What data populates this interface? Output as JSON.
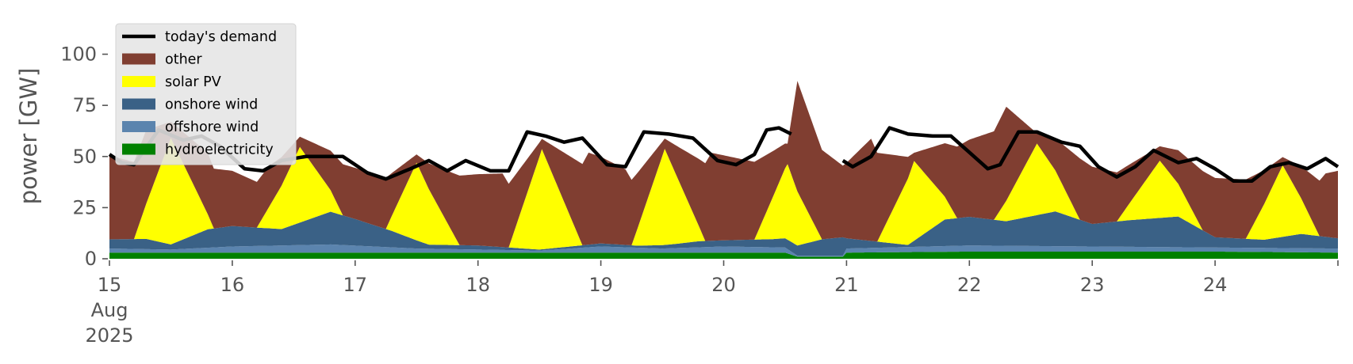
{
  "chart_data": {
    "type": "area",
    "stacked": true,
    "ylabel": "power [GW]",
    "ylim": [
      0,
      118
    ],
    "y_ticks": [
      0,
      25,
      50,
      75,
      100
    ],
    "x_range": [
      15,
      25
    ],
    "x_unit": "day of August 2025",
    "x_ticks": [
      {
        "day": 15,
        "lines": [
          "15",
          "Aug",
          "2025"
        ]
      },
      {
        "day": 16,
        "lines": [
          "16"
        ]
      },
      {
        "day": 17,
        "lines": [
          "17"
        ]
      },
      {
        "day": 18,
        "lines": [
          "18"
        ]
      },
      {
        "day": 19,
        "lines": [
          "19"
        ]
      },
      {
        "day": 20,
        "lines": [
          "20"
        ]
      },
      {
        "day": 21,
        "lines": [
          "21"
        ]
      },
      {
        "day": 22,
        "lines": [
          "22"
        ]
      },
      {
        "day": 23,
        "lines": [
          "23"
        ]
      },
      {
        "day": 24,
        "lines": [
          "24"
        ]
      }
    ],
    "grid": false,
    "legend_position": "top-left",
    "gap_days": [
      20.63,
      20.97
    ],
    "series": [
      {
        "name": "hydroelectricity",
        "color": "#008000",
        "points": [
          [
            15,
            3
          ],
          [
            16,
            3
          ],
          [
            17,
            3
          ],
          [
            18,
            3
          ],
          [
            19,
            3
          ],
          [
            20,
            3
          ],
          [
            20.5,
            3
          ],
          [
            20.6,
            1
          ],
          [
            20.97,
            1
          ],
          [
            21,
            3
          ],
          [
            22,
            3.5
          ],
          [
            23,
            3.5
          ],
          [
            24,
            3.5
          ],
          [
            25,
            3
          ]
        ]
      },
      {
        "name": "offshore wind",
        "color": "#5b84ae",
        "points": [
          [
            15,
            2
          ],
          [
            15.5,
            1.5
          ],
          [
            16,
            3
          ],
          [
            16.8,
            4
          ],
          [
            17.5,
            2
          ],
          [
            18,
            1.5
          ],
          [
            18.5,
            1
          ],
          [
            19,
            3
          ],
          [
            19.5,
            2
          ],
          [
            20,
            3
          ],
          [
            20.5,
            2.5
          ],
          [
            20.6,
            0.5
          ],
          [
            20.97,
            0.5
          ],
          [
            21,
            2
          ],
          [
            22,
            3
          ],
          [
            23,
            2.5
          ],
          [
            24,
            2
          ],
          [
            25,
            2
          ]
        ]
      },
      {
        "name": "onshore wind",
        "color": "#3a6186",
        "points": [
          [
            15,
            4.5
          ],
          [
            15.3,
            5
          ],
          [
            15.5,
            2.5
          ],
          [
            15.8,
            9
          ],
          [
            16,
            10
          ],
          [
            16.4,
            8
          ],
          [
            16.8,
            16
          ],
          [
            17,
            13
          ],
          [
            17.3,
            8
          ],
          [
            17.6,
            2
          ],
          [
            18,
            2
          ],
          [
            18.5,
            0.5
          ],
          [
            19,
            1.5
          ],
          [
            19.3,
            1
          ],
          [
            19.6,
            2
          ],
          [
            19.8,
            3
          ],
          [
            20,
            3
          ],
          [
            20.4,
            4
          ],
          [
            20.6,
            5
          ],
          [
            20.8,
            8
          ],
          [
            20.97,
            9
          ],
          [
            21,
            5
          ],
          [
            21.5,
            1
          ],
          [
            21.8,
            13
          ],
          [
            22,
            14
          ],
          [
            22.3,
            12
          ],
          [
            22.7,
            17
          ],
          [
            23,
            11
          ],
          [
            23.3,
            13
          ],
          [
            23.7,
            15
          ],
          [
            24,
            5
          ],
          [
            24.4,
            4
          ],
          [
            24.7,
            7
          ],
          [
            25,
            5
          ]
        ]
      },
      {
        "name": "solar PV",
        "color": "#ffff00",
        "points": [
          [
            15,
            0
          ],
          [
            15.2,
            0
          ],
          [
            15.5,
            52
          ],
          [
            15.85,
            0
          ],
          [
            16.2,
            0
          ],
          [
            16.55,
            37
          ],
          [
            16.9,
            0
          ],
          [
            17.25,
            0
          ],
          [
            17.5,
            38
          ],
          [
            17.85,
            0
          ],
          [
            18.25,
            0
          ],
          [
            18.52,
            49
          ],
          [
            18.85,
            0
          ],
          [
            19.25,
            0
          ],
          [
            19.52,
            47
          ],
          [
            19.85,
            0
          ],
          [
            20.25,
            0
          ],
          [
            20.52,
            37
          ],
          [
            20.8,
            0
          ],
          [
            21.25,
            0
          ],
          [
            21.55,
            39
          ],
          [
            21.9,
            0
          ],
          [
            22.2,
            0
          ],
          [
            22.55,
            35
          ],
          [
            22.9,
            0
          ],
          [
            23.2,
            0
          ],
          [
            23.55,
            28
          ],
          [
            23.9,
            0
          ],
          [
            24.25,
            0
          ],
          [
            24.55,
            35
          ],
          [
            24.85,
            0
          ],
          [
            25,
            0
          ]
        ]
      },
      {
        "name": "other",
        "color": "#803e31",
        "points": [
          [
            15,
            41
          ],
          [
            15.3,
            36
          ],
          [
            15.5,
            8
          ],
          [
            15.8,
            30
          ],
          [
            16,
            27
          ],
          [
            16.3,
            20
          ],
          [
            16.55,
            5
          ],
          [
            16.9,
            25
          ],
          [
            17.25,
            25
          ],
          [
            17.5,
            4
          ],
          [
            17.85,
            34
          ],
          [
            18.2,
            36
          ],
          [
            18.52,
            5
          ],
          [
            18.9,
            45
          ],
          [
            19.2,
            37
          ],
          [
            19.52,
            5
          ],
          [
            19.9,
            43
          ],
          [
            20.25,
            38
          ],
          [
            20.52,
            10
          ],
          [
            20.6,
            54
          ],
          [
            20.97,
            35
          ],
          [
            21.2,
            50
          ],
          [
            21.55,
            4
          ],
          [
            21.9,
            35
          ],
          [
            22.3,
            46
          ],
          [
            22.55,
            5
          ],
          [
            22.9,
            30
          ],
          [
            23.2,
            24
          ],
          [
            23.55,
            7
          ],
          [
            23.9,
            29
          ],
          [
            24.25,
            29
          ],
          [
            24.55,
            4
          ],
          [
            24.9,
            31
          ],
          [
            25,
            33
          ]
        ]
      }
    ],
    "demand": {
      "name": "today's demand",
      "color": "#000000",
      "points": [
        [
          15,
          51
        ],
        [
          15.1,
          47
        ],
        [
          15.2,
          46
        ],
        [
          15.4,
          63
        ],
        [
          15.6,
          58
        ],
        [
          15.75,
          60
        ],
        [
          15.9,
          55
        ],
        [
          16.1,
          44
        ],
        [
          16.25,
          43
        ],
        [
          16.4,
          48
        ],
        [
          16.6,
          50
        ],
        [
          16.9,
          50
        ],
        [
          17.1,
          42
        ],
        [
          17.25,
          39
        ],
        [
          17.45,
          44
        ],
        [
          17.6,
          48
        ],
        [
          17.75,
          43
        ],
        [
          17.9,
          48
        ],
        [
          18.1,
          43
        ],
        [
          18.25,
          43
        ],
        [
          18.4,
          62
        ],
        [
          18.55,
          60
        ],
        [
          18.7,
          57
        ],
        [
          18.85,
          59
        ],
        [
          19.05,
          46
        ],
        [
          19.2,
          45
        ],
        [
          19.35,
          62
        ],
        [
          19.55,
          61
        ],
        [
          19.75,
          59
        ],
        [
          19.95,
          48
        ],
        [
          20.1,
          46
        ],
        [
          20.25,
          51
        ],
        [
          20.35,
          63
        ],
        [
          20.45,
          64
        ],
        [
          20.55,
          61
        ],
        [
          20.97,
          48
        ],
        [
          21.05,
          45
        ],
        [
          21.2,
          50
        ],
        [
          21.35,
          64
        ],
        [
          21.5,
          61
        ],
        [
          21.7,
          60
        ],
        [
          21.85,
          60
        ],
        [
          22.0,
          52
        ],
        [
          22.15,
          44
        ],
        [
          22.25,
          46
        ],
        [
          22.4,
          62
        ],
        [
          22.55,
          62
        ],
        [
          22.75,
          57
        ],
        [
          22.9,
          55
        ],
        [
          23.05,
          45
        ],
        [
          23.2,
          40
        ],
        [
          23.35,
          45
        ],
        [
          23.5,
          53
        ],
        [
          23.7,
          47
        ],
        [
          23.85,
          49
        ],
        [
          24.0,
          44
        ],
        [
          24.15,
          38
        ],
        [
          24.3,
          38
        ],
        [
          24.45,
          45
        ],
        [
          24.6,
          47
        ],
        [
          24.75,
          44
        ],
        [
          24.9,
          49
        ],
        [
          25,
          45
        ]
      ]
    },
    "legend": [
      {
        "label": "today's demand",
        "kind": "line",
        "color": "#000000"
      },
      {
        "label": "other",
        "kind": "patch",
        "color": "#803e31"
      },
      {
        "label": "solar PV",
        "kind": "patch",
        "color": "#ffff00"
      },
      {
        "label": "onshore wind",
        "kind": "patch",
        "color": "#3a6186"
      },
      {
        "label": "offshore wind",
        "kind": "patch",
        "color": "#5b84ae"
      },
      {
        "label": "hydroelectricity",
        "kind": "patch",
        "color": "#008000"
      }
    ]
  }
}
